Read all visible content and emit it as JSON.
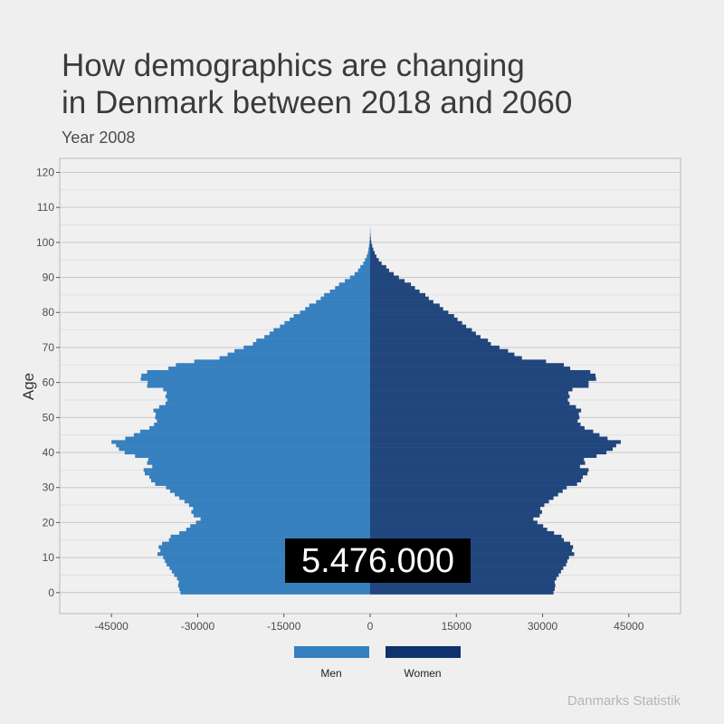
{
  "header": {
    "title_line1": "How demographics are changing",
    "title_line2": "in Denmark between 2018 and 2060",
    "subtitle": "Year 2008"
  },
  "source": "Danmarks Statistik",
  "colors": {
    "men": "#3780BF",
    "women": "#21467D",
    "legend_women": "#0D326E",
    "background": "#efefef",
    "panel": "#f0f0f0",
    "grid": "#cfcfcf",
    "total_box": "#000000",
    "total_text": "#ffffff"
  },
  "chart_data": {
    "type": "bar",
    "orientation": "horizontal",
    "subtype": "population-pyramid",
    "ylabel": "Age",
    "xlabel": "",
    "xlim": [
      -54000,
      54000
    ],
    "ylim": [
      -6,
      124
    ],
    "x_ticks": [
      -45000,
      -30000,
      -15000,
      0,
      15000,
      30000,
      45000
    ],
    "y_ticks": [
      0,
      10,
      20,
      30,
      40,
      50,
      60,
      70,
      80,
      90,
      100,
      110,
      120
    ],
    "grid": true,
    "legend_position": "bottom",
    "annotation": "5.476.000",
    "series": [
      {
        "name": "Men",
        "age_start": 0,
        "values": [
          33000,
          33200,
          33400,
          33300,
          33600,
          34100,
          34500,
          34900,
          35400,
          35700,
          36000,
          37000,
          36500,
          36800,
          36200,
          35000,
          34700,
          33200,
          32000,
          31300,
          30300,
          29500,
          30700,
          31100,
          30800,
          31500,
          32300,
          33200,
          34000,
          34800,
          35500,
          37400,
          38100,
          38400,
          39200,
          39400,
          37900,
          38800,
          38600,
          40900,
          42700,
          43700,
          44200,
          45000,
          42600,
          41100,
          40000,
          38400,
          37600,
          37100,
          37400,
          37300,
          37700,
          36700,
          35600,
          35300,
          35600,
          35400,
          36000,
          38800,
          38700,
          39900,
          39800,
          38800,
          35100,
          33800,
          30600,
          26200,
          24800,
          23600,
          22000,
          20400,
          19800,
          18400,
          17500,
          16800,
          15700,
          14900,
          14000,
          13300,
          12200,
          11300,
          10600,
          9400,
          8600,
          8000,
          7000,
          6100,
          5400,
          4400,
          3500,
          2700,
          2100,
          1700,
          1200,
          900,
          600,
          400,
          300,
          200,
          120,
          70,
          40,
          20,
          10
        ]
      },
      {
        "name": "Women",
        "age_start": 0,
        "values": [
          31900,
          32100,
          32200,
          32100,
          32400,
          32800,
          33200,
          33600,
          34100,
          34300,
          34600,
          35500,
          35100,
          35300,
          34800,
          33700,
          33300,
          32000,
          30800,
          30100,
          29100,
          28400,
          29500,
          29900,
          29600,
          30300,
          31100,
          31900,
          32700,
          33500,
          34200,
          36000,
          36700,
          37000,
          37800,
          38000,
          36500,
          37400,
          37200,
          39400,
          41100,
          42200,
          42800,
          43600,
          41300,
          39900,
          38800,
          37300,
          36600,
          36100,
          36400,
          36300,
          36700,
          35800,
          34700,
          34400,
          34700,
          34500,
          35200,
          38000,
          38000,
          39300,
          39200,
          38300,
          34800,
          33700,
          30600,
          26400,
          25100,
          24000,
          22500,
          21000,
          20500,
          19200,
          18400,
          17700,
          16700,
          16000,
          15200,
          14600,
          13600,
          12700,
          12100,
          11000,
          10200,
          9600,
          8600,
          7800,
          7100,
          6000,
          5000,
          4100,
          3300,
          2800,
          2000,
          1500,
          1100,
          800,
          550,
          350,
          200,
          120,
          70,
          35,
          15
        ]
      }
    ]
  }
}
